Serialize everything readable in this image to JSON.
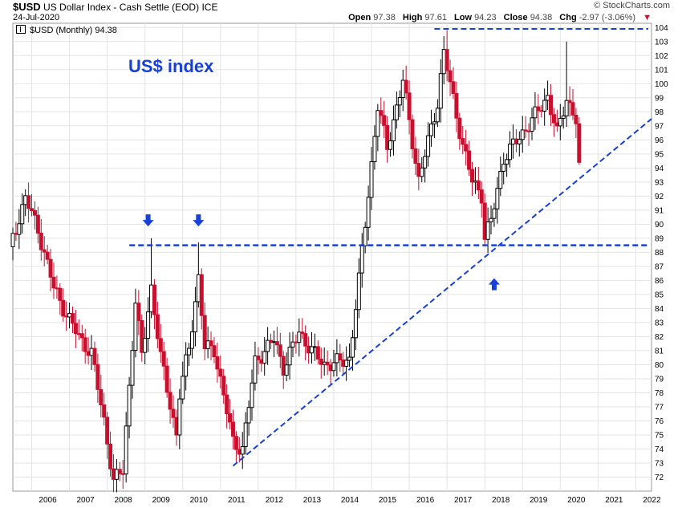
{
  "header": {
    "symbol": "$USD",
    "name": "US Dollar Index - Cash Settle (EOD)",
    "exchange": "ICE",
    "date": "24-Jul-2020",
    "brand": "© StockCharts.com",
    "open_label": "Open",
    "open": "97.38",
    "high_label": "High",
    "high": "97.61",
    "low_label": "Low",
    "low": "94.23",
    "close_label": "Close",
    "close": "94.38",
    "chg_label": "Chg",
    "chg": "-2.97 (-3.06%)",
    "chg_arrow": "▼"
  },
  "legend": {
    "text": "$USD (Monthly) 94.38"
  },
  "annotation": "US$ index",
  "colors": {
    "up": "#000000",
    "down": "#c8102e",
    "annotation": "#1740d9",
    "grid": "#e3e3e3"
  },
  "chart_data": {
    "type": "candlestick",
    "interval": "monthly",
    "xlim": [
      "2005-07",
      "2022-06"
    ],
    "ylim": [
      71,
      104.3
    ],
    "x_tick_labels": [
      "2006",
      "2007",
      "2008",
      "2009",
      "2010",
      "2011",
      "2012",
      "2013",
      "2014",
      "2015",
      "2016",
      "2017",
      "2018",
      "2019",
      "2020",
      "2021",
      "2022"
    ],
    "y_tick_labels": [
      "72",
      "73",
      "74",
      "75",
      "76",
      "77",
      "78",
      "79",
      "80",
      "81",
      "82",
      "83",
      "84",
      "85",
      "86",
      "87",
      "88",
      "89",
      "90",
      "91",
      "92",
      "93",
      "94",
      "95",
      "96",
      "97",
      "98",
      "99",
      "100",
      "101",
      "102",
      "103",
      "104"
    ],
    "y_axis_side": "right",
    "grid": true,
    "legend_position": "top-left",
    "anchors": [
      [
        "2005-07",
        89.0
      ],
      [
        "2005-11",
        91.9
      ],
      [
        "2006-03",
        89.6
      ],
      [
        "2006-08",
        85.5
      ],
      [
        "2006-12",
        83.6
      ],
      [
        "2007-04",
        82.0
      ],
      [
        "2007-08",
        80.8
      ],
      [
        "2007-12",
        76.0
      ],
      [
        "2008-03",
        71.7
      ],
      [
        "2008-06",
        72.5
      ],
      [
        "2008-10",
        84.5
      ],
      [
        "2008-12",
        80.6
      ],
      [
        "2009-03",
        85.5
      ],
      [
        "2009-06",
        80.5
      ],
      [
        "2009-11",
        75.0
      ],
      [
        "2009-12",
        77.9
      ],
      [
        "2010-03",
        81.2
      ],
      [
        "2010-06",
        86.2
      ],
      [
        "2010-08",
        81.2
      ],
      [
        "2010-11",
        81.1
      ],
      [
        "2011-05",
        74.5
      ],
      [
        "2011-08",
        74.0
      ],
      [
        "2011-12",
        80.2
      ],
      [
        "2012-06",
        81.8
      ],
      [
        "2012-09",
        79.8
      ],
      [
        "2013-02",
        82.3
      ],
      [
        "2013-06",
        81.0
      ],
      [
        "2013-10",
        80.0
      ],
      [
        "2014-03",
        80.2
      ],
      [
        "2014-06",
        80.4
      ],
      [
        "2014-09",
        86.0
      ],
      [
        "2015-03",
        98.4
      ],
      [
        "2015-06",
        95.5
      ],
      [
        "2015-11",
        100.2
      ],
      [
        "2016-04",
        93.1
      ],
      [
        "2016-10",
        98.7
      ],
      [
        "2016-12",
        102.2
      ],
      [
        "2017-06",
        95.6
      ],
      [
        "2017-09",
        93.1
      ],
      [
        "2017-12",
        92.1
      ],
      [
        "2018-01",
        89.1
      ],
      [
        "2018-03",
        90.2
      ],
      [
        "2018-07",
        94.7
      ],
      [
        "2018-12",
        96.2
      ],
      [
        "2019-04",
        97.4
      ],
      [
        "2019-09",
        99.1
      ],
      [
        "2019-12",
        96.4
      ],
      [
        "2020-03",
        99.0
      ],
      [
        "2020-06",
        97.4
      ],
      [
        "2020-07",
        94.4
      ]
    ],
    "spikes": [
      {
        "date": "2009-03",
        "high": 89.0
      },
      {
        "date": "2010-06",
        "high": 88.7
      },
      {
        "date": "2017-01",
        "high": 103.8
      },
      {
        "date": "2020-03",
        "high": 103.0
      }
    ],
    "annotations": {
      "resistance_level": 88.5,
      "resistance_from": "2008-06",
      "top_level": 103.9,
      "top_from": "2016-09",
      "trendline": [
        [
          "2011-05",
          72.8
        ],
        [
          "2022-06",
          97.5
        ]
      ],
      "down_arrows": [
        "2009-02",
        "2010-06"
      ],
      "up_arrow": "2018-04"
    }
  }
}
